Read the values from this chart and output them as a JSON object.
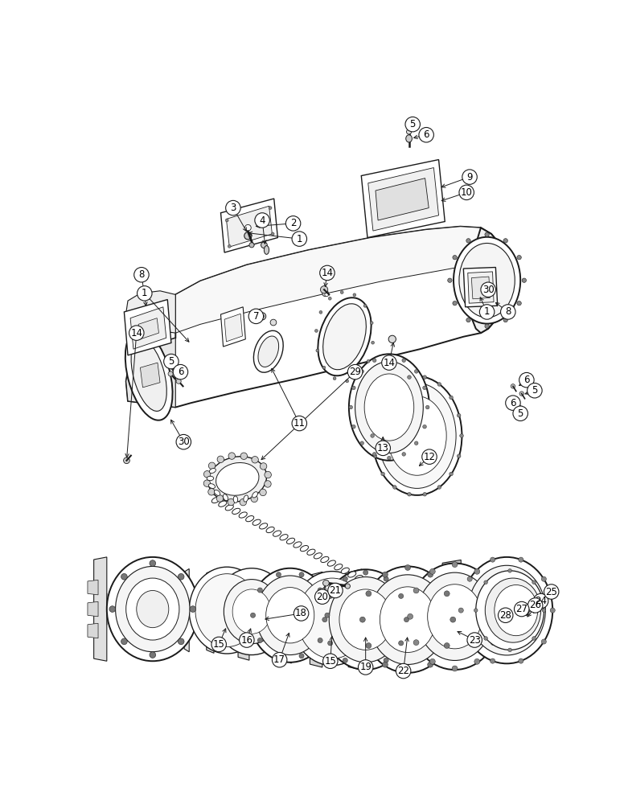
{
  "bg_color": "#ffffff",
  "line_color": "#1a1a1a",
  "lw": 1.0,
  "lw_thin": 0.6,
  "lw_thick": 1.4,
  "label_fs": 8.5,
  "label_r": 12
}
